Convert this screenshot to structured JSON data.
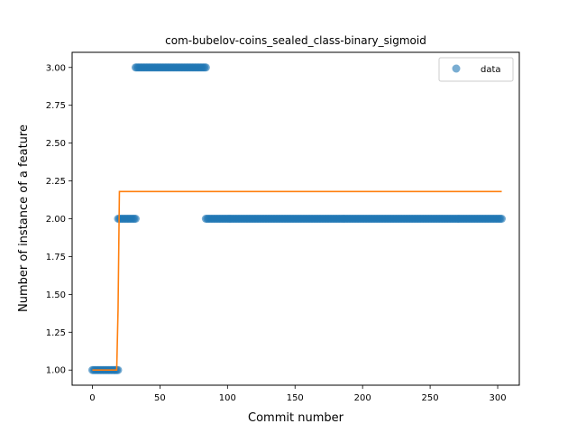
{
  "chart_data": {
    "type": "scatter",
    "title": "com-bubelov-coins_sealed_class-binary_sigmoid",
    "xlabel": "Commit number",
    "ylabel": "Number of instance of a feature",
    "xlim": [
      -15,
      316
    ],
    "ylim": [
      0.9,
      3.1
    ],
    "xticks": [
      0,
      50,
      100,
      150,
      200,
      250,
      300
    ],
    "yticks": [
      1.0,
      1.25,
      1.5,
      1.75,
      2.0,
      2.25,
      2.5,
      2.75,
      3.0
    ],
    "ytick_labels": [
      "1.00",
      "1.25",
      "1.50",
      "1.75",
      "2.00",
      "2.25",
      "2.50",
      "2.75",
      "3.00"
    ],
    "legend": {
      "position": "top-right",
      "entries": [
        "data"
      ]
    },
    "grid": false,
    "series": [
      {
        "name": "data",
        "kind": "scatter",
        "color": "#1f77b4",
        "segments": [
          {
            "x_start": 0,
            "x_end": 19,
            "y": 1
          },
          {
            "x_start": 19,
            "x_end": 32,
            "y": 2
          },
          {
            "x_start": 32,
            "x_end": 84,
            "y": 3
          },
          {
            "x_start": 84,
            "x_end": 303,
            "y": 2
          }
        ]
      },
      {
        "kind": "line",
        "color": "#ff7f0e",
        "x": [
          0,
          18,
          19,
          20,
          303
        ],
        "y": [
          1.0,
          1.0,
          1.4,
          2.18,
          2.18
        ]
      }
    ]
  }
}
